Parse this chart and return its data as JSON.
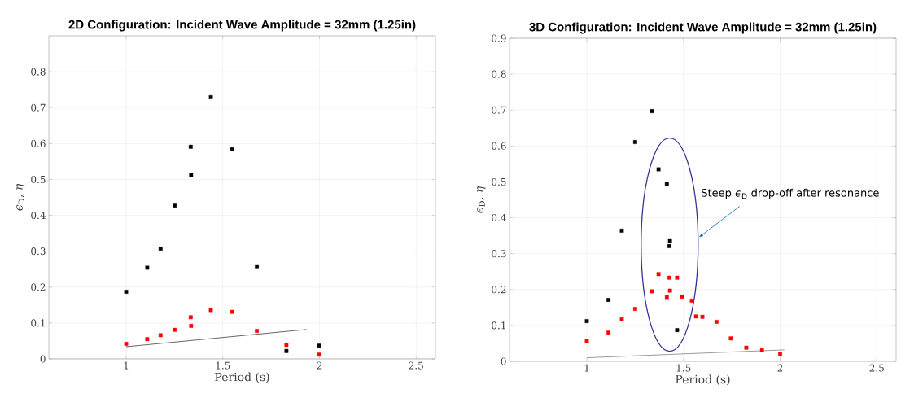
{
  "chart_data": [
    {
      "type": "scatter",
      "title": "2D Configuration: Incident Wave Amplitude = 32mm (1.25in)",
      "xlabel": "Period (s)",
      "ylabel": "*ϵ*$_{D}$, *η*",
      "xlim": [
        0.6,
        2.6
      ],
      "ylim": [
        0,
        0.9
      ],
      "xticks": [
        1,
        1.5,
        2,
        2.5
      ],
      "yticks": [
        0,
        0.1,
        0.2,
        0.3,
        0.4,
        0.5,
        0.6,
        0.7,
        0.8
      ],
      "grid": true,
      "marker": "square",
      "series": [
        {
          "color": "#000000",
          "x": [
            1.0,
            1.109,
            1.178,
            1.251,
            1.334,
            1.336,
            1.438,
            1.549,
            1.676,
            1.829,
            1.999
          ],
          "values": [
            0.187,
            0.254,
            0.307,
            0.427,
            0.591,
            0.512,
            0.729,
            0.584,
            0.258,
            0.022,
            0.037
          ]
        },
        {
          "color": "#ff0000",
          "x": [
            1.0,
            1.109,
            1.178,
            1.251,
            1.334,
            1.336,
            1.438,
            1.549,
            1.676,
            1.829,
            1.999
          ],
          "values": [
            0.042,
            0.055,
            0.066,
            0.081,
            0.116,
            0.092,
            0.136,
            0.131,
            0.078,
            0.039,
            0.012
          ]
        },
        {
          "type": "line",
          "marker": "none",
          "color": "#404040",
          "x": [
            1.0,
            1.934
          ],
          "values": [
            0.034,
            0.082
          ]
        }
      ]
    },
    {
      "type": "scatter",
      "title": "3D Configuration: Incident Wave Amplitude = 32mm (1.25in)",
      "xlabel": "Period (s)",
      "ylabel": "*ϵ*$_{D}$, *η*",
      "xlim": [
        0.6,
        2.6
      ],
      "ylim": [
        0,
        0.9
      ],
      "xticks": [
        1,
        1.5,
        2,
        2.5
      ],
      "yticks": [
        0,
        0.1,
        0.2,
        0.3,
        0.4,
        0.5,
        0.6,
        0.7,
        0.8,
        0.9
      ],
      "grid": true,
      "marker": "square",
      "annotations": [
        "Steep *ϵ*$_{D}$ drop-off after resonance"
      ],
      "series": [
        {
          "color": "#000000",
          "x": [
            1.0,
            1.112,
            1.181,
            1.25,
            1.336,
            1.371,
            1.414,
            1.43,
            1.427,
            1.467
          ],
          "values": [
            0.112,
            0.171,
            0.364,
            0.611,
            0.697,
            0.535,
            0.494,
            0.335,
            0.321,
            0.087
          ]
        },
        {
          "color": "#ff0000",
          "x": [
            1.0,
            1.112,
            1.181,
            1.25,
            1.336,
            1.371,
            1.414,
            1.427,
            1.43,
            1.467,
            1.493,
            1.543,
            1.565,
            1.598,
            1.671,
            1.745,
            1.825,
            1.906,
            2.0
          ],
          "values": [
            0.056,
            0.08,
            0.117,
            0.146,
            0.195,
            0.243,
            0.179,
            0.233,
            0.197,
            0.233,
            0.18,
            0.169,
            0.125,
            0.124,
            0.11,
            0.064,
            0.038,
            0.031,
            0.021
          ]
        },
        {
          "type": "line",
          "marker": "none",
          "color": "#808080",
          "x": [
            1.0,
            2.022
          ],
          "values": [
            0.01,
            0.032
          ]
        }
      ]
    }
  ]
}
